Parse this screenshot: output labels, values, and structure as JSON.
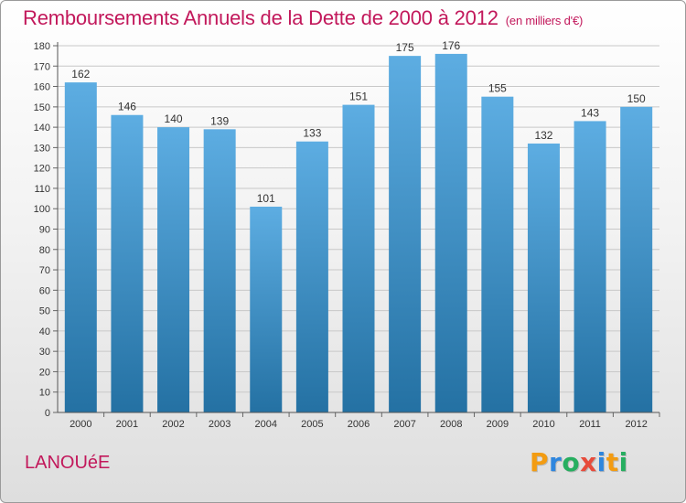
{
  "header": {
    "title": "Remboursements Annuels de la Dette de 2000 à 2012",
    "unit": "(en milliers d'€)"
  },
  "footer": {
    "commune": "LANOUéE",
    "logo": "Proxiti",
    "logo_colors": [
      "#f39c12",
      "#2e86de",
      "#27ae60",
      "#e74c3c",
      "#2e86de",
      "#f39c12",
      "#27ae60"
    ]
  },
  "colors": {
    "title": "#c2185b",
    "bar_light": "#5dade2",
    "bar_dark": "#2471a3",
    "grid": "#c8c8c8"
  },
  "chart_data": {
    "type": "bar",
    "title": "Remboursements Annuels de la Dette de 2000 à 2012",
    "subtitle": "(en milliers d'€)",
    "categories": [
      "2000",
      "2001",
      "2002",
      "2003",
      "2004",
      "2005",
      "2006",
      "2007",
      "2008",
      "2009",
      "2010",
      "2011",
      "2012"
    ],
    "values": [
      162,
      146,
      140,
      139,
      101,
      133,
      151,
      175,
      176,
      155,
      132,
      143,
      150
    ],
    "ylim": [
      0,
      180
    ],
    "yticks": [
      0,
      10,
      20,
      30,
      40,
      50,
      60,
      70,
      80,
      90,
      100,
      110,
      120,
      130,
      140,
      150,
      160,
      170,
      180
    ],
    "grid": true,
    "data_labels": true
  }
}
